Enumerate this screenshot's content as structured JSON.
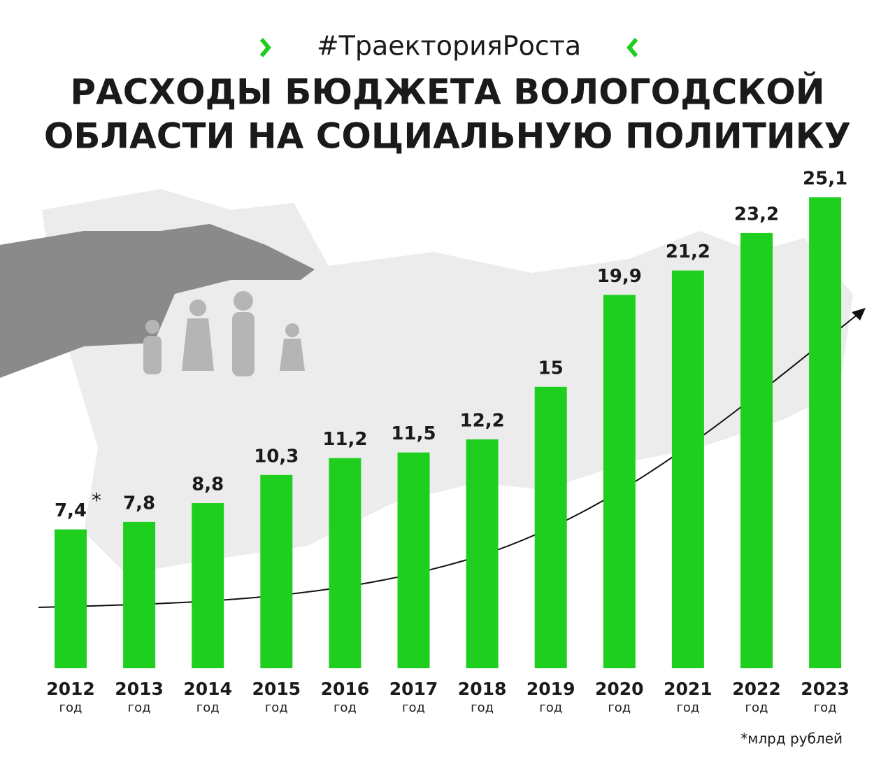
{
  "hashtag": "#ТраекторияРоста",
  "chart_data": {
    "type": "bar",
    "title": [
      "РАСХОДЫ БЮДЖЕТА ВОЛОГОДСКОЙ",
      "ОБЛАСТИ НА СОЦИАЛЬНУЮ ПОЛИТИКУ"
    ],
    "categories": [
      "2012",
      "2013",
      "2014",
      "2015",
      "2016",
      "2017",
      "2018",
      "2019",
      "2020",
      "2021",
      "2022",
      "2023"
    ],
    "category_sublabel": "год",
    "values": [
      7.4,
      7.8,
      8.8,
      10.3,
      11.2,
      11.5,
      12.2,
      15,
      19.9,
      21.2,
      23.2,
      25.1
    ],
    "value_labels": [
      "7,4",
      "7,8",
      "8,8",
      "10,3",
      "11,2",
      "11,5",
      "12,2",
      "15",
      "19,9",
      "21,2",
      "23,2",
      "25,1"
    ],
    "footnote_marker": "*",
    "footnote": "*млрд рублей",
    "color": "#1fcf1f",
    "ylim": [
      0,
      25.1
    ]
  }
}
